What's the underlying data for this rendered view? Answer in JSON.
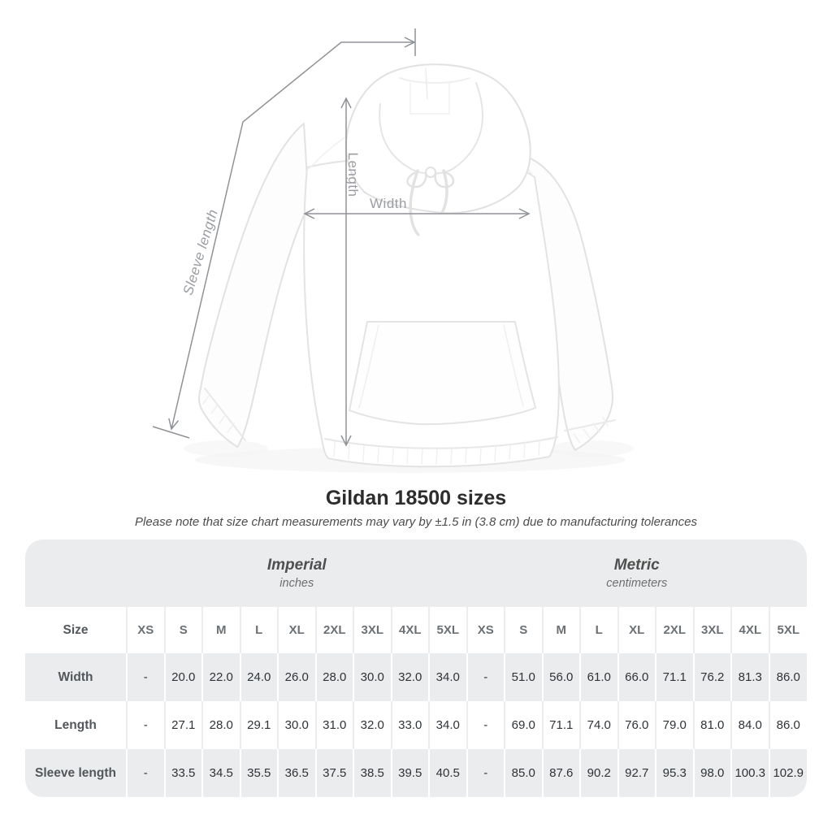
{
  "diagram": {
    "sleeve_length_label": "Sleeve length",
    "length_label": "Length",
    "width_label": "Width"
  },
  "header": {
    "title": "Gildan 18500 sizes",
    "subtitle": "Please note that size chart measurements may vary by ±1.5 in (3.8 cm) due to manufacturing tolerances"
  },
  "table": {
    "size_header_label": "Size",
    "unit_groups": [
      {
        "name": "Imperial",
        "unit": "inches"
      },
      {
        "name": "Metric",
        "unit": "centimeters"
      }
    ],
    "sizes": [
      "XS",
      "S",
      "M",
      "L",
      "XL",
      "2XL",
      "3XL",
      "4XL",
      "5XL"
    ],
    "rows": [
      {
        "label": "Width",
        "imperial": [
          "-",
          "20.0",
          "22.0",
          "24.0",
          "26.0",
          "28.0",
          "30.0",
          "32.0",
          "34.0"
        ],
        "metric": [
          "-",
          "51.0",
          "56.0",
          "61.0",
          "66.0",
          "71.1",
          "76.2",
          "81.3",
          "86.0"
        ]
      },
      {
        "label": "Length",
        "imperial": [
          "-",
          "27.1",
          "28.0",
          "29.1",
          "30.0",
          "31.0",
          "32.0",
          "33.0",
          "34.0"
        ],
        "metric": [
          "-",
          "69.0",
          "71.1",
          "74.0",
          "76.0",
          "79.0",
          "81.0",
          "84.0",
          "86.0"
        ]
      },
      {
        "label": "Sleeve length",
        "imperial": [
          "-",
          "33.5",
          "34.5",
          "35.5",
          "36.5",
          "37.5",
          "38.5",
          "39.5",
          "40.5"
        ],
        "metric": [
          "-",
          "85.0",
          "87.6",
          "90.2",
          "92.7",
          "95.3",
          "98.0",
          "100.3",
          "102.9"
        ]
      }
    ]
  },
  "colors": {
    "table_band_gray": "#ebeced",
    "separator_on_white": "#ededee",
    "arrow_gray": "#8f9296",
    "diagram_label_gray": "#9a9da1",
    "title_color": "#2d2d2d",
    "subtitle_color": "#4c4c4c",
    "size_header_text": "#6b7075",
    "row_label_text": "#53575b",
    "cell_text": "#2f3337"
  }
}
